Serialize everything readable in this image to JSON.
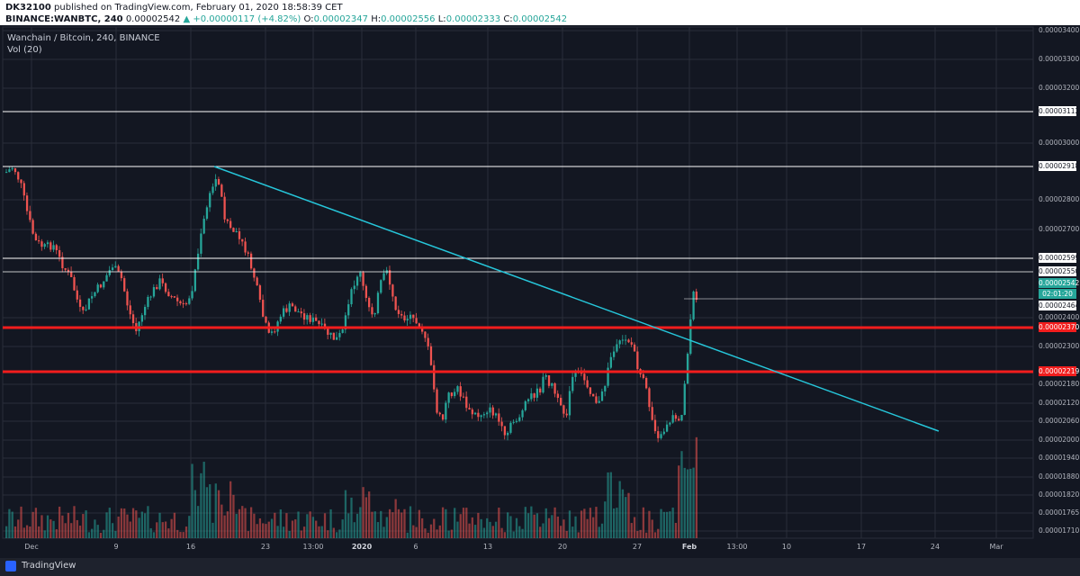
{
  "header": {
    "user": "DK32100",
    "published_text": "published on TradingView.com, February 01, 2020 18:58:39 CET",
    "symbol": "BINANCE:WANBTC, 240",
    "last_price": "0.00002542",
    "change": "+0.00000117 (+4.82%)",
    "open_label": "O:",
    "open": "0.00002347",
    "high_label": "H:",
    "high": "0.00002556",
    "low_label": "L:",
    "low": "0.00002333",
    "close_label": "C:",
    "close": "0.00002542"
  },
  "legend": {
    "title": "Wanchain / Bitcoin, 240, BINANCE",
    "volume": "Vol (20)"
  },
  "footer": {
    "brand": "TradingView"
  },
  "price_labels": {
    "p3112": "0.00003112",
    "p2918": "0.00002918",
    "p2599": "0.00002599",
    "p2550": "0.00002550",
    "p2542": "0.00002542",
    "countdown": "02:01:20",
    "p2464": "0.00002464",
    "p2370": "0.00002370",
    "p2219": "0.00002219"
  },
  "chart_data": {
    "type": "candlestick",
    "symbol": "WANBTC",
    "y_axis_ticks": [
      "0.00003400",
      "0.00003300",
      "0.00003200",
      "0.00003000",
      "0.00002800",
      "0.00002700",
      "0.00002400",
      "0.00002300",
      "0.00002180",
      "0.00002120",
      "0.00002060",
      "0.00002000",
      "0.00001940",
      "0.00001880",
      "0.00001820",
      "0.00001765",
      "0.00001710"
    ],
    "x_axis_ticks": [
      "Dec",
      "9",
      "16",
      "23",
      "13:00",
      "2020",
      "6",
      "13",
      "20",
      "27",
      "Feb",
      "13:00",
      "10",
      "17",
      "24",
      "Mar"
    ],
    "x_axis_bold": [
      "2020",
      "Feb"
    ],
    "horizontal_levels": [
      {
        "price": 3.112e-05,
        "color": "#ffffff"
      },
      {
        "price": 2.918e-05,
        "color": "#ffffff"
      },
      {
        "price": 2.599e-05,
        "color": "#ffffff"
      },
      {
        "price": 2.55e-05,
        "color": "#ffffff"
      },
      {
        "price": 2.37e-05,
        "color": "#f21d1d"
      },
      {
        "price": 2.219e-05,
        "color": "#f21d1d"
      }
    ],
    "trendline": {
      "start": {
        "date": "Dec 17",
        "price": 2.92e-05
      },
      "end": {
        "date": "Feb 24",
        "price": 2.03e-05
      },
      "color": "#26c6da"
    },
    "key_points": [
      {
        "date": "Nov 30",
        "price": 2.91e-05
      },
      {
        "date": "Dec 3",
        "price": 2.7e-05
      },
      {
        "date": "Dec 6",
        "price": 2.56e-05
      },
      {
        "date": "Dec 10",
        "price": 2.38e-05
      },
      {
        "date": "Dec 16",
        "price": 2.88e-05
      },
      {
        "date": "Dec 22",
        "price": 2.35e-05
      },
      {
        "date": "Dec 28",
        "price": 2.4e-05
      },
      {
        "date": "Jan 1",
        "price": 2.58e-05
      },
      {
        "date": "Jan 6",
        "price": 2.38e-05
      },
      {
        "date": "Jan 8",
        "price": 2.05e-05
      },
      {
        "date": "Jan 14",
        "price": 2.02e-05
      },
      {
        "date": "Jan 19",
        "price": 2.2e-05
      },
      {
        "date": "Jan 24",
        "price": 2.38e-05
      },
      {
        "date": "Jan 28",
        "price": 2e-05
      },
      {
        "date": "Jan 30",
        "price": 2.13e-05
      },
      {
        "date": "Feb 1",
        "price": 2.54e-05
      }
    ],
    "colors": {
      "up": "#26a69a",
      "down": "#ef5350",
      "grid": "#2a2e39",
      "background": "#131722"
    }
  }
}
